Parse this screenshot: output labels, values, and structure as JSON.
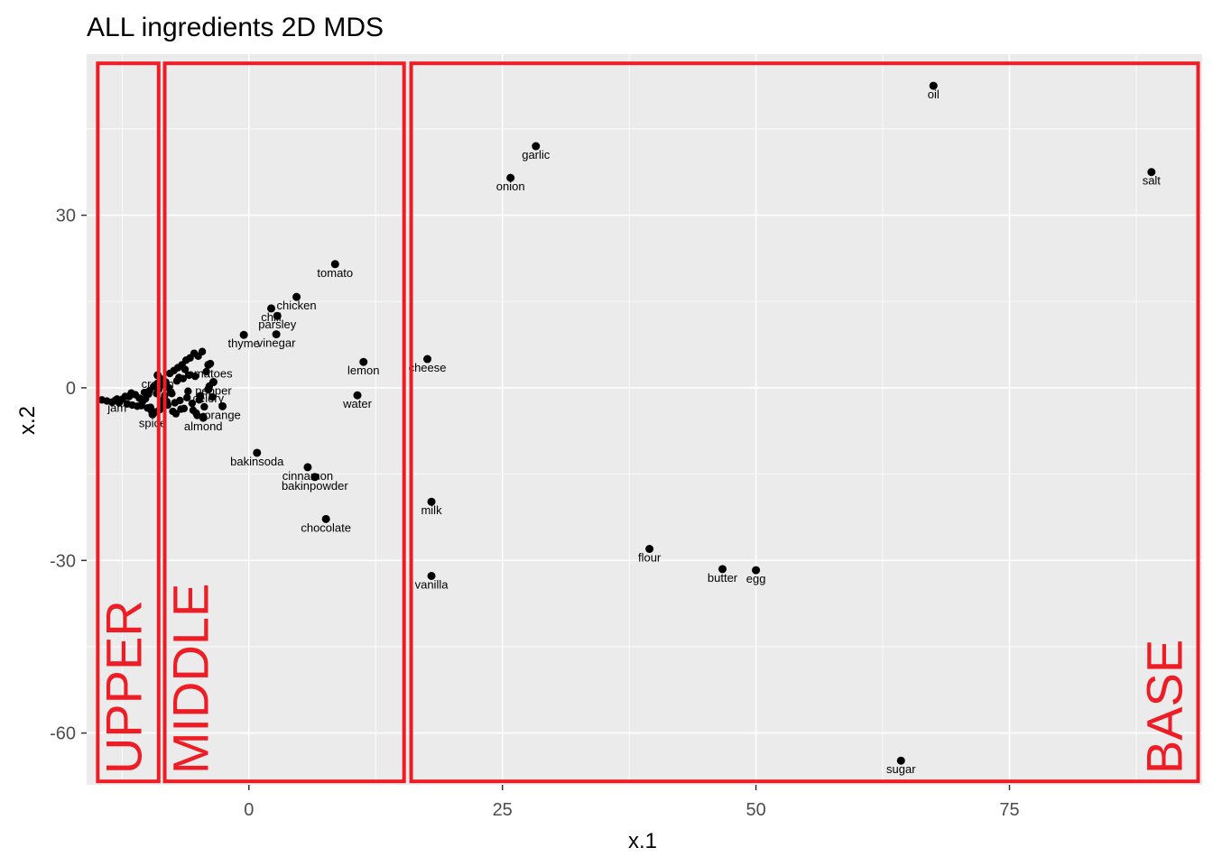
{
  "chart_data": {
    "type": "scatter",
    "title": "ALL ingredients 2D MDS",
    "xlabel": "x.1",
    "ylabel": "x.2",
    "xlim": [
      -16,
      94
    ],
    "ylim": [
      -69,
      58
    ],
    "xticks": [
      0,
      25,
      50,
      75
    ],
    "yticks": [
      30,
      0,
      -30,
      -60
    ],
    "grid": true,
    "points": [
      {
        "label": "oil",
        "x": 67.5,
        "y": 52.5
      },
      {
        "label": "garlic",
        "x": 28.3,
        "y": 42.0
      },
      {
        "label": "onion",
        "x": 25.8,
        "y": 36.5
      },
      {
        "label": "salt",
        "x": 89.0,
        "y": 37.5
      },
      {
        "label": "tomato",
        "x": 8.5,
        "y": 21.5
      },
      {
        "label": "chicken",
        "x": 4.7,
        "y": 15.8
      },
      {
        "label": "chili",
        "x": 2.2,
        "y": 13.8
      },
      {
        "label": "parsley",
        "x": 2.8,
        "y": 12.5
      },
      {
        "label": "thyme",
        "x": -0.5,
        "y": 9.2
      },
      {
        "label": "vinegar",
        "x": 2.7,
        "y": 9.3
      },
      {
        "label": "lemon",
        "x": 11.3,
        "y": 4.5
      },
      {
        "label": "cheese",
        "x": 17.6,
        "y": 5.0
      },
      {
        "label": "water",
        "x": 10.7,
        "y": -1.3
      },
      {
        "label": "tomatoes",
        "x": -4.0,
        "y": 4.0
      },
      {
        "label": "pepper",
        "x": -3.5,
        "y": 1.0
      },
      {
        "label": "celery",
        "x": -4.0,
        "y": -0.3
      },
      {
        "label": "orange",
        "x": -2.6,
        "y": -3.2
      },
      {
        "label": "almond",
        "x": -4.5,
        "y": -5.2
      },
      {
        "label": "cream",
        "x": -9.0,
        "y": 2.2
      },
      {
        "label": "jam",
        "x": -13.0,
        "y": -2.0
      },
      {
        "label": "spice",
        "x": -9.5,
        "y": -4.6
      },
      {
        "label": "bakinsoda",
        "x": 0.8,
        "y": -11.3
      },
      {
        "label": "cinnamon",
        "x": 5.8,
        "y": -13.8
      },
      {
        "label": "bakinpowder",
        "x": 6.5,
        "y": -15.5
      },
      {
        "label": "chocolate",
        "x": 7.6,
        "y": -22.8
      },
      {
        "label": "milk",
        "x": 18.0,
        "y": -19.8
      },
      {
        "label": "vanilla",
        "x": 18.0,
        "y": -32.7
      },
      {
        "label": "flour",
        "x": 39.5,
        "y": -28.0
      },
      {
        "label": "butter",
        "x": 46.7,
        "y": -31.5
      },
      {
        "label": "egg",
        "x": 50.0,
        "y": -31.7
      },
      {
        "label": "sugar",
        "x": 64.3,
        "y": -64.8
      }
    ],
    "cluster": {
      "x": [
        -14.5,
        -14.0,
        -13.5,
        -13.2,
        -12.8,
        -12.5,
        -12.0,
        -11.8,
        -11.5,
        -11.2,
        -11.0,
        -10.8,
        -10.5,
        -10.3,
        -10.0,
        -9.8,
        -9.6,
        -9.4,
        -9.2,
        -9.0,
        -8.8,
        -8.6,
        -8.4,
        -8.2,
        -8.0,
        -7.8,
        -7.6,
        -7.4,
        -7.2,
        -7.0,
        -6.8,
        -6.6,
        -6.4,
        -6.2,
        -6.0,
        -5.8,
        -5.6,
        -5.4,
        -5.2,
        -5.0,
        -4.8,
        -4.6,
        -4.4,
        -4.2,
        -4.0,
        -3.8,
        -3.6,
        -8.5,
        -9.1,
        -7.3,
        -6.9,
        -5.5,
        -10.2,
        -11.6,
        -8.7,
        -7.9,
        -6.1,
        -5.9,
        -9.7,
        -8.1,
        -7.1,
        -6.3,
        -5.1,
        -4.5,
        -3.9,
        -8.9,
        -9.9,
        -10.6,
        -12.2,
        -7.7,
        -6.7,
        -5.3,
        -4.9,
        -6.5,
        -7.5,
        -8.3
      ],
      "y": [
        -2.1,
        -2.3,
        -2.5,
        -2.2,
        -2.6,
        -2.0,
        -2.8,
        -1.5,
        -3.0,
        -1.2,
        -3.2,
        -1.8,
        -2.4,
        -0.8,
        -3.5,
        -0.5,
        -4.0,
        0.2,
        -4.2,
        0.8,
        -3.8,
        1.5,
        -2.0,
        1.0,
        -3.0,
        2.5,
        -1.0,
        3.0,
        -4.5,
        3.5,
        -2.2,
        4.0,
        -3.6,
        4.8,
        -0.6,
        5.2,
        -2.7,
        6.0,
        -4.4,
        5.5,
        -1.4,
        6.3,
        -3.3,
        2.8,
        -0.2,
        4.2,
        -1.6,
        0.5,
        -1.0,
        -2.6,
        1.8,
        -3.9,
        -1.9,
        -0.9,
        -2.9,
        0.0,
        -1.7,
        2.2,
        -3.4,
        -2.4,
        1.2,
        3.2,
        -4.8,
        -5.0,
        0.3,
        -0.3,
        -1.1,
        -3.1,
        -1.5,
        -0.7,
        -3.7,
        2.0,
        -2.1,
        1.6,
        -4.1,
        -1.3
      ]
    },
    "regions": [
      {
        "label": "UPPER",
        "x_from": -14.9,
        "x_to": -8.9
      },
      {
        "label": "MIDDLE",
        "x_from": -8.3,
        "x_to": 15.3
      },
      {
        "label": "BASE",
        "x_from": 16.0,
        "x_to": 93.6
      }
    ],
    "region_y": [
      -68.4,
      56.4
    ],
    "colors": {
      "panel": "#ebebeb",
      "grid": "#ffffff",
      "point": "#000000",
      "region": "#ee1c25",
      "tick": "#4d4d4d"
    }
  }
}
